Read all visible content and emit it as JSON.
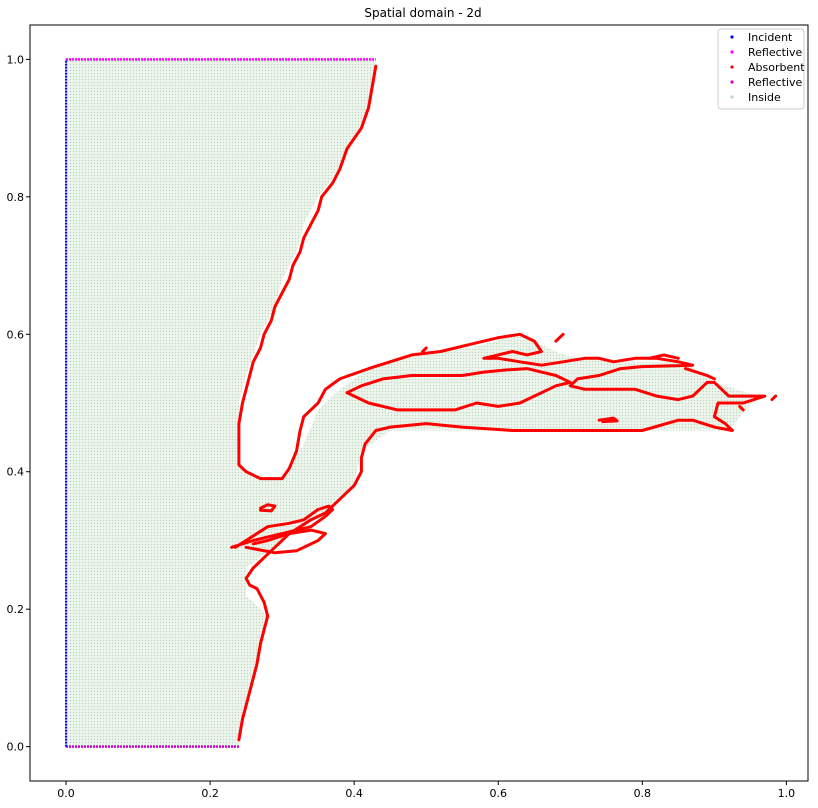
{
  "chart_data": {
    "type": "scatter",
    "title": "Spatial domain - 2d",
    "xlabel": "",
    "ylabel": "",
    "xlim": [
      -0.05,
      1.03
    ],
    "ylim": [
      -0.05,
      1.05
    ],
    "xticks": [
      0.0,
      0.2,
      0.4,
      0.6,
      0.8,
      1.0
    ],
    "yticks": [
      0.0,
      0.2,
      0.4,
      0.6,
      0.8,
      1.0
    ],
    "xtick_labels": [
      "0.0",
      "0.2",
      "0.4",
      "0.6",
      "0.8",
      "1.0"
    ],
    "ytick_labels": [
      "0.0",
      "0.2",
      "0.4",
      "0.6",
      "0.8",
      "1.0"
    ],
    "grid": false,
    "legend_position": "top-right",
    "legend": [
      {
        "label": "Incident",
        "color": "#0000ff"
      },
      {
        "label": "Reflective",
        "color": "#ff00ff"
      },
      {
        "label": "Absorbent",
        "color": "#ff0000"
      },
      {
        "label": "Reflective",
        "color": "#cc00cc"
      },
      {
        "label": "Inside",
        "color": "#bcd9bc"
      }
    ],
    "series": {
      "incident": {
        "color": "#0000ff",
        "segment": [
          [
            0.0,
            0.0
          ],
          [
            0.0,
            1.0
          ]
        ]
      },
      "reflective_top": {
        "color": "#ff00ff",
        "segment": [
          [
            0.0,
            1.0
          ],
          [
            0.43,
            1.0
          ]
        ]
      },
      "reflective_bottom": {
        "color": "#cc00cc",
        "segment": [
          [
            0.0,
            0.0
          ],
          [
            0.24,
            0.0
          ]
        ]
      },
      "inside": {
        "color": "#bcd9bc",
        "polygon": [
          [
            0.0,
            1.0
          ],
          [
            0.43,
            1.0
          ],
          [
            0.43,
            0.97
          ],
          [
            0.41,
            0.9
          ],
          [
            0.38,
            0.84
          ],
          [
            0.35,
            0.8
          ],
          [
            0.33,
            0.76
          ],
          [
            0.32,
            0.72
          ],
          [
            0.3,
            0.68
          ],
          [
            0.29,
            0.64
          ],
          [
            0.27,
            0.6
          ],
          [
            0.26,
            0.57
          ],
          [
            0.25,
            0.54
          ],
          [
            0.24,
            0.5
          ],
          [
            0.24,
            0.45
          ],
          [
            0.24,
            0.41
          ],
          [
            0.27,
            0.39
          ],
          [
            0.3,
            0.39
          ],
          [
            0.33,
            0.44
          ],
          [
            0.35,
            0.49
          ],
          [
            0.38,
            0.52
          ],
          [
            0.42,
            0.55
          ],
          [
            0.48,
            0.57
          ],
          [
            0.56,
            0.58
          ],
          [
            0.63,
            0.6
          ],
          [
            0.69,
            0.57
          ],
          [
            0.76,
            0.56
          ],
          [
            0.86,
            0.56
          ],
          [
            0.9,
            0.53
          ],
          [
            0.96,
            0.51
          ],
          [
            0.92,
            0.46
          ],
          [
            0.8,
            0.46
          ],
          [
            0.62,
            0.46
          ],
          [
            0.5,
            0.46
          ],
          [
            0.45,
            0.46
          ],
          [
            0.41,
            0.43
          ],
          [
            0.4,
            0.38
          ],
          [
            0.36,
            0.34
          ],
          [
            0.3,
            0.3
          ],
          [
            0.25,
            0.26
          ],
          [
            0.25,
            0.22
          ],
          [
            0.28,
            0.19
          ],
          [
            0.27,
            0.13
          ],
          [
            0.25,
            0.06
          ],
          [
            0.24,
            0.0
          ],
          [
            0.0,
            0.0
          ]
        ]
      },
      "absorbent": {
        "color": "#ff0000",
        "curves": [
          [
            [
              0.43,
              0.99
            ],
            [
              0.42,
              0.93
            ],
            [
              0.41,
              0.9
            ],
            [
              0.39,
              0.87
            ],
            [
              0.38,
              0.84
            ],
            [
              0.37,
              0.82
            ],
            [
              0.355,
              0.8
            ],
            [
              0.35,
              0.78
            ],
            [
              0.34,
              0.76
            ],
            [
              0.33,
              0.74
            ],
            [
              0.325,
              0.72
            ],
            [
              0.315,
              0.7
            ],
            [
              0.31,
              0.68
            ],
            [
              0.3,
              0.66
            ],
            [
              0.29,
              0.64
            ],
            [
              0.285,
              0.62
            ],
            [
              0.275,
              0.6
            ],
            [
              0.27,
              0.58
            ],
            [
              0.26,
              0.56
            ],
            [
              0.255,
              0.54
            ],
            [
              0.25,
              0.52
            ],
            [
              0.245,
              0.5
            ],
            [
              0.24,
              0.47
            ],
            [
              0.24,
              0.44
            ],
            [
              0.24,
              0.41
            ],
            [
              0.25,
              0.4
            ],
            [
              0.27,
              0.39
            ],
            [
              0.3,
              0.39
            ],
            [
              0.31,
              0.405
            ],
            [
              0.32,
              0.43
            ],
            [
              0.325,
              0.46
            ],
            [
              0.33,
              0.48
            ],
            [
              0.35,
              0.5
            ],
            [
              0.36,
              0.52
            ],
            [
              0.38,
              0.535
            ],
            [
              0.42,
              0.55
            ],
            [
              0.48,
              0.57
            ],
            [
              0.52,
              0.575
            ],
            [
              0.56,
              0.585
            ],
            [
              0.6,
              0.595
            ],
            [
              0.63,
              0.6
            ],
            [
              0.65,
              0.59
            ],
            [
              0.66,
              0.575
            ],
            [
              0.64,
              0.57
            ],
            [
              0.62,
              0.575
            ],
            [
              0.6,
              0.57
            ],
            [
              0.58,
              0.565
            ],
            [
              0.6,
              0.565
            ],
            [
              0.63,
              0.56
            ],
            [
              0.66,
              0.555
            ],
            [
              0.69,
              0.56
            ],
            [
              0.72,
              0.565
            ],
            [
              0.74,
              0.565
            ],
            [
              0.76,
              0.56
            ],
            [
              0.79,
              0.565
            ],
            [
              0.82,
              0.565
            ],
            [
              0.85,
              0.56
            ],
            [
              0.87,
              0.555
            ],
            [
              0.8,
              0.553
            ],
            [
              0.77,
              0.55
            ],
            [
              0.74,
              0.54
            ],
            [
              0.71,
              0.535
            ],
            [
              0.7,
              0.525
            ],
            [
              0.72,
              0.52
            ],
            [
              0.75,
              0.52
            ],
            [
              0.79,
              0.52
            ],
            [
              0.82,
              0.51
            ],
            [
              0.85,
              0.505
            ],
            [
              0.87,
              0.51
            ],
            [
              0.88,
              0.52
            ],
            [
              0.89,
              0.53
            ],
            [
              0.9,
              0.53
            ],
            [
              0.91,
              0.52
            ],
            [
              0.92,
              0.51
            ],
            [
              0.96,
              0.51
            ],
            [
              0.97,
              0.51
            ],
            [
              0.94,
              0.5
            ],
            [
              0.92,
              0.5
            ],
            [
              0.905,
              0.5
            ],
            [
              0.9,
              0.48
            ],
            [
              0.915,
              0.47
            ],
            [
              0.925,
              0.46
            ],
            [
              0.9,
              0.465
            ],
            [
              0.87,
              0.475
            ],
            [
              0.85,
              0.475
            ],
            [
              0.8,
              0.46
            ],
            [
              0.72,
              0.46
            ],
            [
              0.62,
              0.46
            ],
            [
              0.55,
              0.465
            ],
            [
              0.5,
              0.47
            ],
            [
              0.45,
              0.465
            ],
            [
              0.43,
              0.46
            ],
            [
              0.415,
              0.44
            ],
            [
              0.41,
              0.42
            ],
            [
              0.41,
              0.4
            ],
            [
              0.4,
              0.38
            ],
            [
              0.39,
              0.37
            ],
            [
              0.38,
              0.36
            ],
            [
              0.36,
              0.34
            ],
            [
              0.34,
              0.33
            ],
            [
              0.31,
              0.31
            ],
            [
              0.28,
              0.28
            ],
            [
              0.26,
              0.26
            ],
            [
              0.25,
              0.245
            ],
            [
              0.255,
              0.235
            ],
            [
              0.265,
              0.23
            ],
            [
              0.275,
              0.21
            ],
            [
              0.28,
              0.19
            ],
            [
              0.275,
              0.17
            ],
            [
              0.27,
              0.15
            ],
            [
              0.265,
              0.12
            ],
            [
              0.255,
              0.08
            ],
            [
              0.245,
              0.04
            ],
            [
              0.24,
              0.01
            ]
          ],
          [
            [
              0.57,
              0.5
            ],
            [
              0.6,
              0.495
            ],
            [
              0.63,
              0.5
            ],
            [
              0.65,
              0.51
            ],
            [
              0.67,
              0.52
            ],
            [
              0.68,
              0.525
            ],
            [
              0.7,
              0.53
            ],
            [
              0.68,
              0.54
            ],
            [
              0.66,
              0.545
            ],
            [
              0.64,
              0.55
            ],
            [
              0.61,
              0.548
            ],
            [
              0.58,
              0.545
            ],
            [
              0.55,
              0.54
            ],
            [
              0.52,
              0.54
            ],
            [
              0.48,
              0.54
            ],
            [
              0.44,
              0.535
            ],
            [
              0.41,
              0.525
            ],
            [
              0.39,
              0.515
            ],
            [
              0.42,
              0.5
            ],
            [
              0.46,
              0.49
            ],
            [
              0.5,
              0.49
            ],
            [
              0.54,
              0.49
            ],
            [
              0.57,
              0.5
            ]
          ],
          [
            [
              0.23,
              0.29
            ],
            [
              0.26,
              0.3
            ],
            [
              0.3,
              0.31
            ],
            [
              0.34,
              0.32
            ],
            [
              0.36,
              0.335
            ],
            [
              0.37,
              0.345
            ],
            [
              0.365,
              0.35
            ],
            [
              0.35,
              0.345
            ],
            [
              0.33,
              0.33
            ],
            [
              0.31,
              0.325
            ],
            [
              0.28,
              0.32
            ],
            [
              0.25,
              0.3
            ],
            [
              0.235,
              0.29
            ]
          ],
          [
            [
              0.25,
              0.29
            ],
            [
              0.29,
              0.282
            ],
            [
              0.32,
              0.285
            ],
            [
              0.35,
              0.3
            ],
            [
              0.36,
              0.31
            ],
            [
              0.34,
              0.315
            ],
            [
              0.31,
              0.31
            ],
            [
              0.28,
              0.3
            ],
            [
              0.26,
              0.295
            ]
          ],
          [
            [
              0.27,
              0.347
            ],
            [
              0.28,
              0.352
            ],
            [
              0.29,
              0.35
            ],
            [
              0.285,
              0.343
            ],
            [
              0.27,
              0.344
            ]
          ],
          [
            [
              0.86,
              0.55
            ],
            [
              0.89,
              0.54
            ],
            [
              0.9,
              0.535
            ]
          ],
          [
            [
              0.81,
              0.565
            ],
            [
              0.83,
              0.57
            ],
            [
              0.85,
              0.565
            ]
          ],
          [
            [
              0.68,
              0.59
            ],
            [
              0.69,
              0.6
            ]
          ],
          [
            [
              0.74,
              0.475
            ],
            [
              0.76,
              0.478
            ],
            [
              0.765,
              0.474
            ],
            [
              0.745,
              0.473
            ]
          ],
          [
            [
              0.935,
              0.495
            ],
            [
              0.94,
              0.49
            ]
          ],
          [
            [
              0.98,
              0.505
            ],
            [
              0.985,
              0.51
            ]
          ],
          [
            [
              0.495,
              0.575
            ],
            [
              0.5,
              0.58
            ]
          ]
        ]
      }
    }
  }
}
